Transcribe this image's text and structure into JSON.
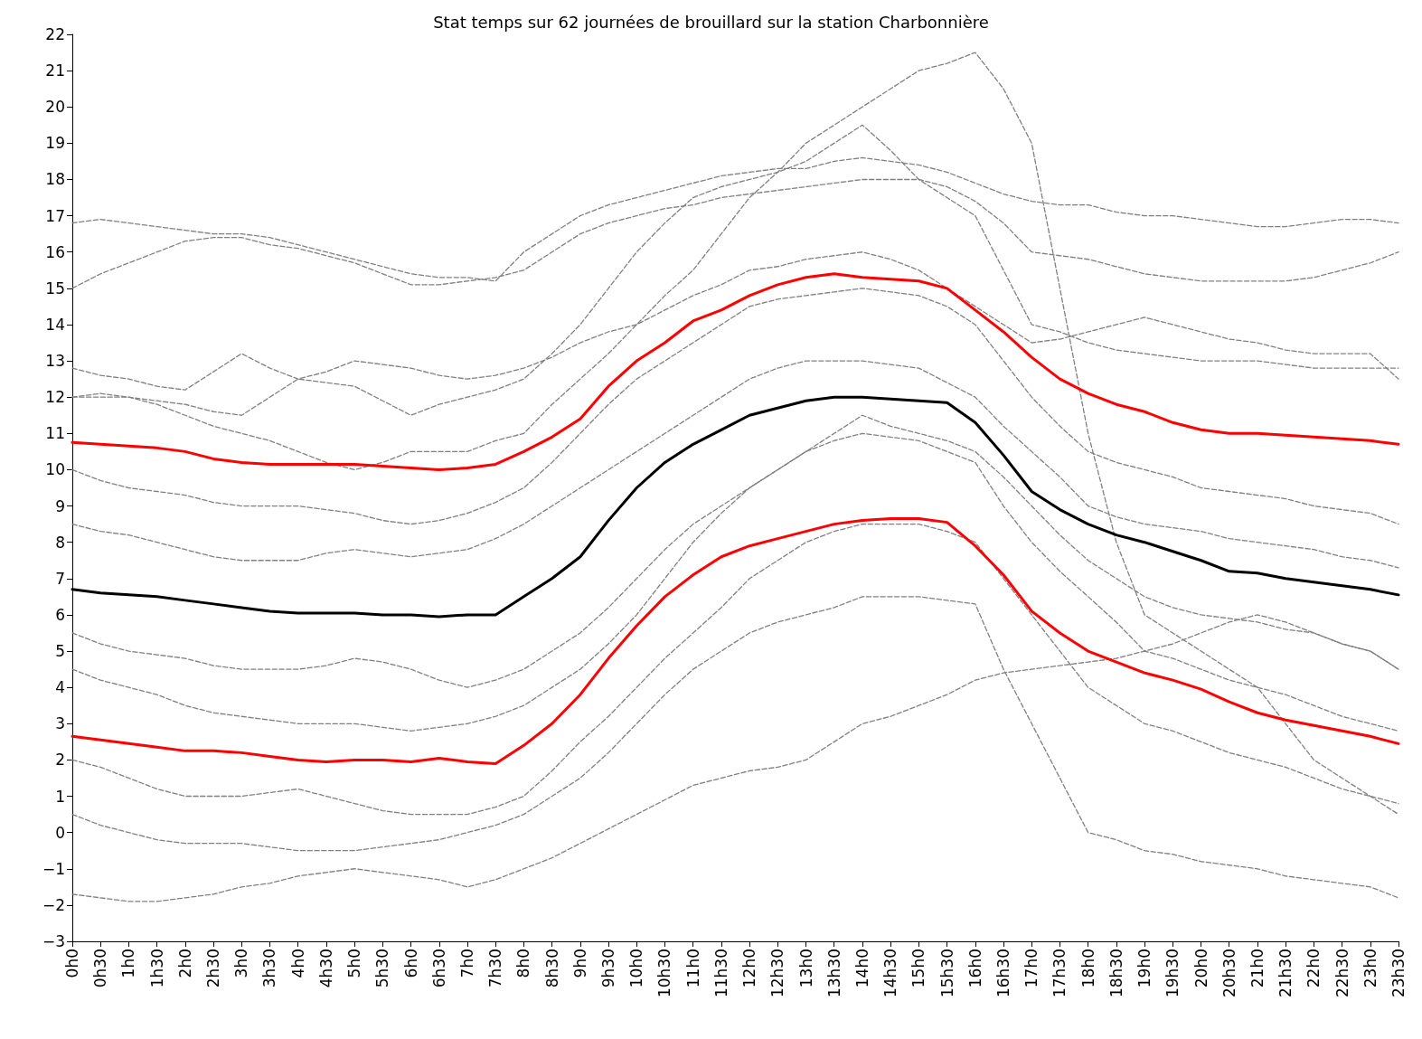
{
  "chart_data": {
    "type": "line",
    "title": "Stat temps sur 62 journées de brouillard sur la station Charbonnière",
    "categories": [
      "0h0",
      "0h30",
      "1h0",
      "1h30",
      "2h0",
      "2h30",
      "3h0",
      "3h30",
      "4h0",
      "4h30",
      "5h0",
      "5h30",
      "6h0",
      "6h30",
      "7h0",
      "7h30",
      "8h0",
      "8h30",
      "9h0",
      "9h30",
      "10h0",
      "10h30",
      "11h0",
      "11h30",
      "12h0",
      "12h30",
      "13h0",
      "13h30",
      "14h0",
      "14h30",
      "15h0",
      "15h30",
      "16h0",
      "16h30",
      "17h0",
      "17h30",
      "18h0",
      "18h30",
      "19h0",
      "19h30",
      "20h0",
      "20h30",
      "21h0",
      "21h30",
      "22h0",
      "22h30",
      "23h0",
      "23h30"
    ],
    "ylim": [
      -3,
      22
    ],
    "yticks": [
      {
        "value": -3,
        "label": "−3"
      },
      {
        "value": -2,
        "label": "−2"
      },
      {
        "value": -1,
        "label": "−1"
      },
      0,
      1,
      2,
      3,
      4,
      5,
      6,
      7,
      8,
      9,
      10,
      11,
      12,
      13,
      14,
      15,
      16,
      17,
      18,
      19,
      20,
      21,
      22
    ],
    "grid": false,
    "marker": "none",
    "series": [
      {
        "color": "#808080",
        "line_style": "dashed",
        "values": [
          16.8,
          16.9,
          16.8,
          16.7,
          16.6,
          16.5,
          16.5,
          16.4,
          16.2,
          16.0,
          15.8,
          15.6,
          15.4,
          15.3,
          15.3,
          15.2,
          16.0,
          16.5,
          17.0,
          17.3,
          17.5,
          17.7,
          17.9,
          18.1,
          18.2,
          18.3,
          18.3,
          18.5,
          18.6,
          18.5,
          18.4,
          18.2,
          17.9,
          17.6,
          17.4,
          17.3,
          17.3,
          17.1,
          17.0,
          17.0,
          16.9,
          16.8,
          16.7,
          16.7,
          16.8,
          16.9,
          16.9,
          16.8
        ]
      },
      {
        "color": "#808080",
        "line_style": "dashed",
        "values": [
          15.0,
          15.4,
          15.7,
          16.0,
          16.3,
          16.4,
          16.4,
          16.2,
          16.1,
          15.9,
          15.7,
          15.4,
          15.1,
          15.1,
          15.2,
          15.3,
          15.5,
          16.0,
          16.5,
          16.8,
          17.0,
          17.2,
          17.3,
          17.5,
          17.6,
          17.7,
          17.8,
          17.9,
          18.0,
          18.0,
          18.0,
          17.8,
          17.4,
          16.8,
          16.0,
          15.9,
          15.8,
          15.6,
          15.4,
          15.3,
          15.2,
          15.2,
          15.2,
          15.2,
          15.3,
          15.5,
          15.7,
          16.0
        ]
      },
      {
        "color": "#808080",
        "line_style": "dashed",
        "values": [
          12.0,
          12.1,
          12.0,
          11.9,
          11.8,
          11.6,
          11.5,
          12.0,
          12.5,
          12.4,
          12.3,
          11.9,
          11.5,
          11.8,
          12.0,
          12.2,
          12.5,
          13.2,
          14.0,
          15.0,
          16.0,
          16.8,
          17.5,
          17.8,
          18.0,
          18.2,
          18.5,
          19.0,
          19.5,
          18.8,
          18.0,
          17.5,
          17.0,
          15.5,
          14.0,
          13.8,
          13.5,
          13.3,
          13.2,
          13.1,
          13.0,
          13.0,
          13.0,
          12.9,
          12.8,
          12.8,
          12.8,
          12.8
        ]
      },
      {
        "color": "#808080",
        "line_style": "dashed",
        "values": [
          12.0,
          12.0,
          12.0,
          11.8,
          11.5,
          11.2,
          11.0,
          10.8,
          10.5,
          10.2,
          10.0,
          10.2,
          10.5,
          10.5,
          10.5,
          10.8,
          11.0,
          11.8,
          12.5,
          13.2,
          14.0,
          14.8,
          15.5,
          16.5,
          17.5,
          18.2,
          19.0,
          19.5,
          20.0,
          20.5,
          21.0,
          21.2,
          21.5,
          20.5,
          19.0,
          15.0,
          11.0,
          8.0,
          6.0,
          5.5,
          5.0,
          4.5,
          4.0,
          3.0,
          2.0,
          1.5,
          1.0,
          0.5
        ]
      },
      {
        "color": "#808080",
        "line_style": "dashed",
        "values": [
          12.8,
          12.6,
          12.5,
          12.3,
          12.2,
          12.7,
          13.2,
          12.8,
          12.5,
          12.7,
          13.0,
          12.9,
          12.8,
          12.6,
          12.5,
          12.6,
          12.8,
          13.1,
          13.5,
          13.8,
          14.0,
          14.4,
          14.8,
          15.1,
          15.5,
          15.6,
          15.8,
          15.9,
          16.0,
          15.8,
          15.5,
          15.0,
          14.5,
          14.0,
          13.5,
          13.6,
          13.8,
          14.0,
          14.2,
          14.0,
          13.8,
          13.6,
          13.5,
          13.3,
          13.2,
          13.2,
          13.2,
          12.5
        ]
      },
      {
        "color": "#808080",
        "line_style": "dashed",
        "values": [
          10.0,
          9.7,
          9.5,
          9.4,
          9.3,
          9.1,
          9.0,
          9.0,
          9.0,
          8.9,
          8.8,
          8.6,
          8.5,
          8.6,
          8.8,
          9.1,
          9.5,
          10.2,
          11.0,
          11.8,
          12.5,
          13.0,
          13.5,
          14.0,
          14.5,
          14.7,
          14.8,
          14.9,
          15.0,
          14.9,
          14.8,
          14.5,
          14.0,
          13.0,
          12.0,
          11.2,
          10.5,
          10.2,
          10.0,
          9.8,
          9.5,
          9.4,
          9.3,
          9.2,
          9.0,
          8.9,
          8.8,
          8.5
        ]
      },
      {
        "color": "#808080",
        "line_style": "dashed",
        "values": [
          8.5,
          8.3,
          8.2,
          8.0,
          7.8,
          7.6,
          7.5,
          7.5,
          7.5,
          7.7,
          7.8,
          7.7,
          7.6,
          7.7,
          7.8,
          8.1,
          8.5,
          9.0,
          9.5,
          10.0,
          10.5,
          11.0,
          11.5,
          12.0,
          12.5,
          12.8,
          13.0,
          13.0,
          13.0,
          12.9,
          12.8,
          12.4,
          12.0,
          11.2,
          10.5,
          9.8,
          9.0,
          8.7,
          8.5,
          8.4,
          8.3,
          8.1,
          8.0,
          7.9,
          7.8,
          7.6,
          7.5,
          7.3
        ]
      },
      {
        "color": "#808080",
        "line_style": "dashed",
        "values": [
          5.5,
          5.2,
          5.0,
          4.9,
          4.8,
          4.6,
          4.5,
          4.5,
          4.5,
          4.6,
          4.8,
          4.7,
          4.5,
          4.2,
          4.0,
          4.2,
          4.5,
          5.0,
          5.5,
          6.2,
          7.0,
          7.8,
          8.5,
          9.0,
          9.5,
          10.0,
          10.5,
          11.0,
          11.5,
          11.2,
          11.0,
          10.8,
          10.5,
          9.8,
          9.0,
          8.2,
          7.5,
          7.0,
          6.5,
          6.2,
          6.0,
          5.9,
          5.8,
          5.6,
          5.5,
          5.2,
          5.0,
          4.5
        ]
      },
      {
        "color": "#808080",
        "line_style": "dashed",
        "values": [
          4.5,
          4.2,
          4.0,
          3.8,
          3.5,
          3.3,
          3.2,
          3.1,
          3.0,
          3.0,
          3.0,
          2.9,
          2.8,
          2.9,
          3.0,
          3.2,
          3.5,
          4.0,
          4.5,
          5.2,
          6.0,
          7.0,
          8.0,
          8.8,
          9.5,
          10.0,
          10.5,
          10.8,
          11.0,
          10.9,
          10.8,
          10.5,
          10.2,
          9.0,
          8.0,
          7.2,
          6.5,
          5.8,
          5.0,
          4.8,
          4.5,
          4.2,
          4.0,
          3.8,
          3.5,
          3.2,
          3.0,
          2.8
        ]
      },
      {
        "color": "#808080",
        "line_style": "dashed",
        "values": [
          2.0,
          1.8,
          1.5,
          1.2,
          1.0,
          1.0,
          1.0,
          1.1,
          1.2,
          1.0,
          0.8,
          0.6,
          0.5,
          0.5,
          0.5,
          0.7,
          1.0,
          1.7,
          2.5,
          3.2,
          4.0,
          4.8,
          5.5,
          6.2,
          7.0,
          7.5,
          8.0,
          8.3,
          8.5,
          8.5,
          8.5,
          8.3,
          8.0,
          7.0,
          6.0,
          5.0,
          4.0,
          3.5,
          3.0,
          2.8,
          2.5,
          2.2,
          2.0,
          1.8,
          1.5,
          1.2,
          1.0,
          0.8
        ]
      },
      {
        "color": "#808080",
        "line_style": "dashed",
        "values": [
          0.5,
          0.2,
          0.0,
          -0.2,
          -0.3,
          -0.3,
          -0.3,
          -0.4,
          -0.5,
          -0.5,
          -0.5,
          -0.4,
          -0.3,
          -0.2,
          0.0,
          0.2,
          0.5,
          1.0,
          1.5,
          2.2,
          3.0,
          3.8,
          4.5,
          5.0,
          5.5,
          5.8,
          6.0,
          6.2,
          6.5,
          6.5,
          6.5,
          6.4,
          6.3,
          4.5,
          3.0,
          1.5,
          0.0,
          -0.2,
          -0.5,
          -0.6,
          -0.8,
          -0.9,
          -1.0,
          -1.2,
          -1.3,
          -1.4,
          -1.5,
          -1.8
        ]
      },
      {
        "color": "#808080",
        "line_style": "dashed",
        "values": [
          -1.7,
          -1.8,
          -1.9,
          -1.9,
          -1.8,
          -1.7,
          -1.5,
          -1.4,
          -1.2,
          -1.1,
          -1.0,
          -1.1,
          -1.2,
          -1.3,
          -1.5,
          -1.3,
          -1.0,
          -0.7,
          -0.3,
          0.1,
          0.5,
          0.9,
          1.3,
          1.5,
          1.7,
          1.8,
          2.0,
          2.5,
          3.0,
          3.2,
          3.5,
          3.8,
          4.2,
          4.4,
          4.5,
          4.6,
          4.7,
          4.8,
          5.0,
          5.2,
          5.5,
          5.8,
          6.0,
          5.8,
          5.5,
          5.2,
          5.0,
          4.5
        ]
      },
      {
        "color": "#000000",
        "line_style": "solid",
        "values": [
          6.7,
          6.6,
          6.55,
          6.5,
          6.4,
          6.3,
          6.2,
          6.1,
          6.05,
          6.05,
          6.05,
          6.0,
          6.0,
          5.95,
          6.0,
          6.0,
          6.5,
          7.0,
          7.6,
          8.6,
          9.5,
          10.2,
          10.7,
          11.1,
          11.5,
          11.7,
          11.9,
          12.0,
          12.0,
          11.95,
          11.9,
          11.85,
          11.3,
          10.4,
          9.4,
          8.9,
          8.5,
          8.2,
          8.0,
          7.75,
          7.5,
          7.2,
          7.15,
          7.0,
          6.9,
          6.8,
          6.7,
          6.55
        ]
      },
      {
        "color": "#ff0000",
        "line_style": "solid",
        "values": [
          10.75,
          10.7,
          10.65,
          10.6,
          10.5,
          10.3,
          10.2,
          10.15,
          10.15,
          10.15,
          10.15,
          10.1,
          10.05,
          10.0,
          10.05,
          10.15,
          10.5,
          10.9,
          11.4,
          12.3,
          13.0,
          13.5,
          14.1,
          14.4,
          14.8,
          15.1,
          15.3,
          15.4,
          15.3,
          15.25,
          15.2,
          15.0,
          14.4,
          13.8,
          13.1,
          12.5,
          12.1,
          11.8,
          11.6,
          11.3,
          11.1,
          11.0,
          11.0,
          10.95,
          10.9,
          10.85,
          10.8,
          10.7
        ]
      },
      {
        "color": "#ff0000",
        "line_style": "solid",
        "values": [
          2.65,
          2.55,
          2.45,
          2.35,
          2.25,
          2.25,
          2.2,
          2.1,
          2.0,
          1.95,
          2.0,
          2.0,
          1.95,
          2.05,
          1.95,
          1.9,
          2.4,
          3.0,
          3.8,
          4.8,
          5.7,
          6.5,
          7.1,
          7.6,
          7.9,
          8.1,
          8.3,
          8.5,
          8.6,
          8.65,
          8.65,
          8.55,
          7.9,
          7.1,
          6.1,
          5.5,
          5.0,
          4.7,
          4.4,
          4.2,
          3.95,
          3.6,
          3.3,
          3.1,
          2.95,
          2.8,
          2.65,
          2.45
        ]
      }
    ]
  }
}
